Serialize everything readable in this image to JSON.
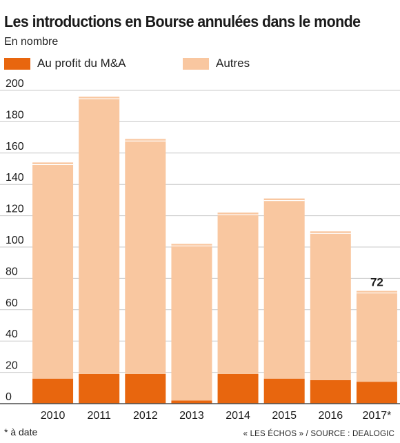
{
  "header": {
    "title": "Les introductions en Bourse annulées dans le monde",
    "subtitle": "En nombre"
  },
  "colors": {
    "ma": "#e8660e",
    "autres": "#f9c7a0",
    "grid": "#c8c8c8",
    "axis": "#4d4d4d",
    "text": "#1a1a1a"
  },
  "chart_data": {
    "type": "bar",
    "stacked": true,
    "categories": [
      "2010",
      "2011",
      "2012",
      "2013",
      "2014",
      "2015",
      "2016",
      "2017*"
    ],
    "series": [
      {
        "name": "Au profit du M&A",
        "values": [
          16,
          19,
          19,
          2,
          19,
          16,
          15,
          14
        ]
      },
      {
        "name": "Autres",
        "values": [
          138,
          177,
          150,
          100,
          103,
          115,
          95,
          58
        ]
      }
    ],
    "totals": [
      154,
      196,
      169,
      102,
      122,
      131,
      110,
      72
    ],
    "annotations": [
      {
        "category": "2017*",
        "text": "72"
      }
    ],
    "ylim": [
      0,
      200
    ],
    "yticks": [
      0,
      20,
      40,
      60,
      80,
      100,
      120,
      140,
      160,
      180,
      200
    ],
    "grid": true,
    "legend": "top-left"
  },
  "footnote": "* à date",
  "source": "« LES ÉCHOS » / SOURCE : DEALOGIC"
}
